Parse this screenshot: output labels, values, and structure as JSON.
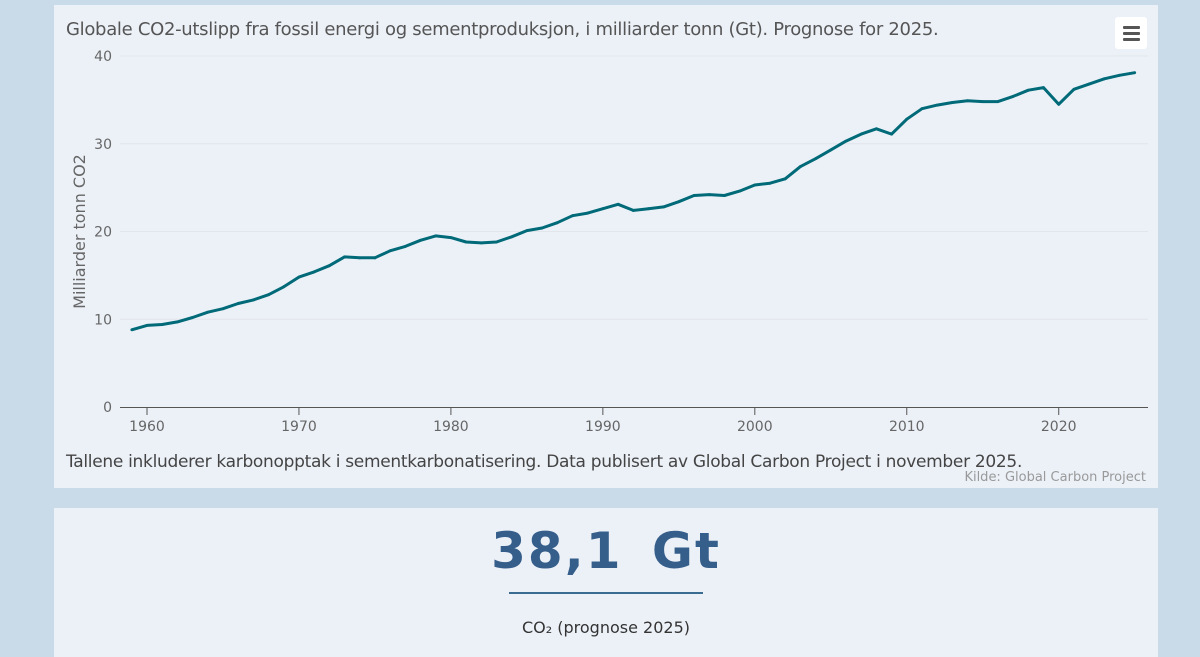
{
  "chart_data": {
    "type": "line",
    "title": "Globale CO2-utslipp fra fossil energi og sementproduksjon, i milliarder tonn (Gt). Prognose for 2025.",
    "xlabel": "",
    "ylabel": "Milliarder tonn CO2",
    "ylim": [
      0,
      40
    ],
    "xlim": [
      1959,
      2025
    ],
    "yticks": [
      0,
      10,
      20,
      30,
      40
    ],
    "xticks": [
      1960,
      1970,
      1980,
      1990,
      2000,
      2010,
      2020
    ],
    "grid": true,
    "line_color": "#006a78",
    "x": [
      1959,
      1960,
      1961,
      1962,
      1963,
      1964,
      1965,
      1966,
      1967,
      1968,
      1969,
      1970,
      1971,
      1972,
      1973,
      1974,
      1975,
      1976,
      1977,
      1978,
      1979,
      1980,
      1981,
      1982,
      1983,
      1984,
      1985,
      1986,
      1987,
      1988,
      1989,
      1990,
      1991,
      1992,
      1993,
      1994,
      1995,
      1996,
      1997,
      1998,
      1999,
      2000,
      2001,
      2002,
      2003,
      2004,
      2005,
      2006,
      2007,
      2008,
      2009,
      2010,
      2011,
      2012,
      2013,
      2014,
      2015,
      2016,
      2017,
      2018,
      2019,
      2020,
      2021,
      2022,
      2023,
      2024,
      2025
    ],
    "series": [
      {
        "name": "CO2",
        "values": [
          8.8,
          9.3,
          9.4,
          9.7,
          10.2,
          10.8,
          11.2,
          11.8,
          12.2,
          12.8,
          13.7,
          14.8,
          15.4,
          16.1,
          17.1,
          17.0,
          17.0,
          17.8,
          18.3,
          19.0,
          19.5,
          19.3,
          18.8,
          18.7,
          18.8,
          19.4,
          20.1,
          20.4,
          21.0,
          21.8,
          22.1,
          22.6,
          23.1,
          22.4,
          22.6,
          22.8,
          23.4,
          24.1,
          24.2,
          24.1,
          24.6,
          25.3,
          25.5,
          26.0,
          27.4,
          28.3,
          29.3,
          30.3,
          31.1,
          31.7,
          31.1,
          32.8,
          34.0,
          34.4,
          34.7,
          34.9,
          34.8,
          34.8,
          35.4,
          36.1,
          36.4,
          34.5,
          36.2,
          36.8,
          37.4,
          37.8,
          38.1
        ]
      }
    ],
    "note": "Tallene inkluderer karbonopptak i sementkarbonatisering. Data publisert av Global Carbon Project i november 2025.",
    "source": "Kilde: Global Carbon Project"
  },
  "menu_icon": "hamburger-menu-icon",
  "kpi": {
    "value": "38,1 Gt",
    "label": "CO₂ (prognose 2025)",
    "color": "#355e8a"
  }
}
